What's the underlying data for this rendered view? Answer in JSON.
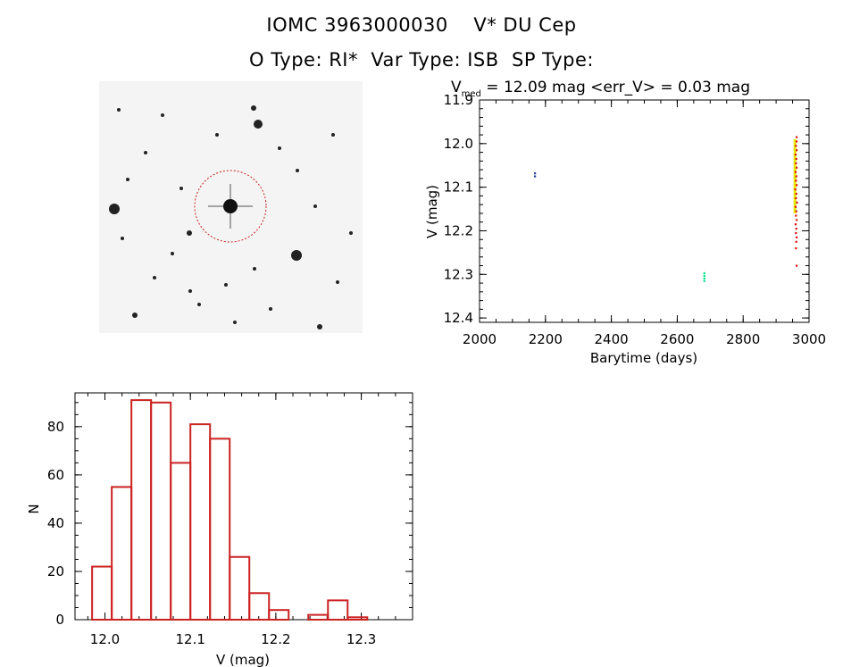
{
  "header": {
    "title_line1": "IOMC 3963000030    V* DU Cep",
    "title_line2": "O Type: RI*  Var Type: ISB  SP Type:"
  },
  "finder": {
    "background": "#f3f3f3",
    "circle_color": "#cc2222"
  },
  "chart_data": [
    {
      "type": "scatter",
      "title_prefix": "V",
      "title_subscript": "med",
      "title_rest": " = 12.09 mag <err_V> = 0.03 mag",
      "xlabel": "Barytime (days)",
      "ylabel": "V (mag)",
      "xlim": [
        2000,
        3000
      ],
      "ylim": [
        11.9,
        12.41
      ],
      "y_inverted": true,
      "xticks": [
        "2000",
        "2200",
        "2400",
        "2600",
        "2800",
        "3000"
      ],
      "yticks": [
        "11.9",
        "12.0",
        "12.1",
        "12.2",
        "12.3",
        "12.4"
      ],
      "series": [
        {
          "color": "#1f3fa0",
          "points": [
            [
              2168,
              12.068
            ],
            [
              2168,
              12.075
            ]
          ]
        },
        {
          "color": "#00e08a",
          "points": [
            [
              2682,
              12.297
            ],
            [
              2682,
              12.303
            ],
            [
              2682,
              12.309
            ],
            [
              2682,
              12.315
            ]
          ]
        },
        {
          "color": "#e8e800",
          "band": {
            "x": [
              2953,
              2958
            ],
            "y": [
              11.99,
              12.16
            ]
          }
        },
        {
          "color": "#dd1111",
          "points": [
            [
              2962,
              11.985
            ],
            [
              2962,
              11.995
            ],
            [
              2960,
              12.005
            ],
            [
              2962,
              12.015
            ],
            [
              2959,
              12.025
            ],
            [
              2961,
              12.035
            ],
            [
              2960,
              12.045
            ],
            [
              2962,
              12.055
            ],
            [
              2959,
              12.065
            ],
            [
              2961,
              12.075
            ],
            [
              2960,
              12.085
            ],
            [
              2962,
              12.095
            ],
            [
              2958,
              12.105
            ],
            [
              2961,
              12.115
            ],
            [
              2960,
              12.125
            ],
            [
              2963,
              12.135
            ],
            [
              2959,
              12.145
            ],
            [
              2961,
              12.155
            ],
            [
              2960,
              12.165
            ],
            [
              2962,
              12.175
            ],
            [
              2959,
              12.185
            ],
            [
              2961,
              12.195
            ],
            [
              2960,
              12.205
            ],
            [
              2962,
              12.215
            ],
            [
              2961,
              12.225
            ],
            [
              2960,
              12.24
            ],
            [
              2962,
              12.28
            ]
          ]
        }
      ]
    },
    {
      "type": "bar",
      "xlabel": "V (mag)",
      "ylabel": "N",
      "xlim": [
        11.965,
        12.36
      ],
      "ylim": [
        0,
        94
      ],
      "bar_color": "#cc2222",
      "bin_edges": [
        11.985,
        12.008,
        12.031,
        12.054,
        12.077,
        12.1,
        12.123,
        12.146,
        12.169,
        12.192,
        12.215,
        12.238,
        12.261,
        12.284,
        12.307,
        12.33
      ],
      "values": [
        22,
        55,
        91,
        90,
        65,
        81,
        75,
        26,
        11,
        4,
        0,
        2,
        8,
        1,
        0
      ],
      "xticks": [
        "12.0",
        "12.1",
        "12.2",
        "12.3"
      ],
      "xtick_values": [
        12.0,
        12.1,
        12.2,
        12.3
      ],
      "yticks": [
        "0",
        "20",
        "40",
        "60",
        "80"
      ],
      "ytick_values": [
        0,
        20,
        40,
        60,
        80
      ]
    }
  ]
}
